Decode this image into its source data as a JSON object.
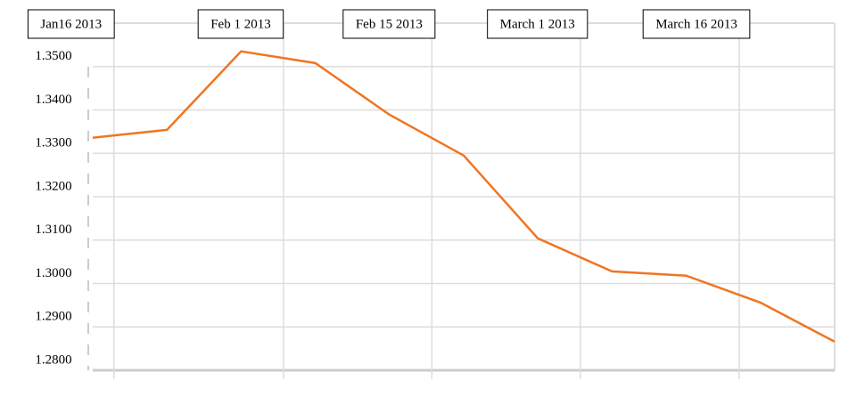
{
  "chart_data": {
    "type": "line",
    "x": [
      14,
      21,
      28,
      35,
      42,
      49,
      56,
      63,
      70,
      77,
      84
    ],
    "series": [
      {
        "color": "#f07522",
        "values": [
          1.3336,
          1.3354,
          1.3535,
          1.3508,
          1.3389,
          1.3295,
          1.3104,
          1.3028,
          1.3018,
          1.2956,
          1.2866
        ]
      }
    ],
    "xlim": [
      14,
      84
    ],
    "xticks": [
      {
        "value": 16,
        "label": "Jan16 2013"
      },
      {
        "value": 32,
        "label": "Feb 1 2013"
      },
      {
        "value": 46,
        "label": "Feb 15 2013"
      },
      {
        "value": 60,
        "label": "March 1 2013"
      },
      {
        "value": 75,
        "label": "March 16 2013"
      }
    ],
    "ylim": [
      1.28,
      1.36
    ],
    "yticks": [
      {
        "value": 1.35,
        "label": "1.3500"
      },
      {
        "value": 1.34,
        "label": "1.3400"
      },
      {
        "value": 1.33,
        "label": "1.3300"
      },
      {
        "value": 1.32,
        "label": "1.3200"
      },
      {
        "value": 1.31,
        "label": "1.3100"
      },
      {
        "value": 1.3,
        "label": "1.3000"
      },
      {
        "value": 1.29,
        "label": "1.2900"
      },
      {
        "value": 1.28,
        "label": "1.2800"
      }
    ],
    "grid": true
  }
}
